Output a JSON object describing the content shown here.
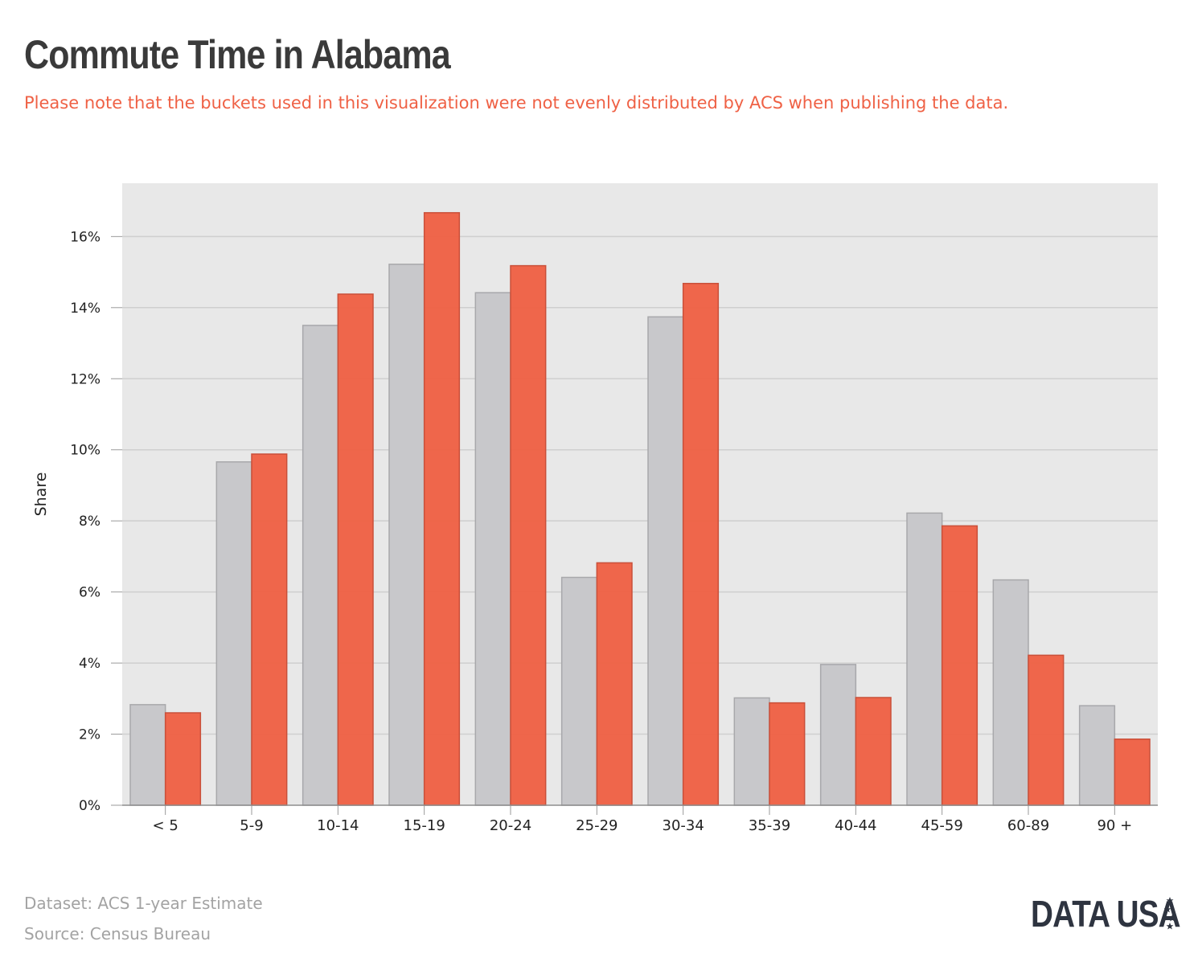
{
  "title": "Commute Time in Alabama",
  "subtitle": "Please note that the buckets used in this visualization were not evenly distributed by ACS when publishing the data.",
  "footer": {
    "dataset": "Dataset: ACS 1-year Estimate",
    "source": "Source: Census Bureau"
  },
  "logo": {
    "text": "DATA USA",
    "icon": "stars-icon"
  },
  "colors": {
    "accent": "#ef6145",
    "gray_bar": "#c8c8cb",
    "plot_background": "#e8e8e8"
  },
  "chart_data": {
    "type": "bar",
    "ylabel": "Share",
    "xlabel": "",
    "ylim": [
      0,
      17.5
    ],
    "yticks": [
      0,
      2,
      4,
      6,
      8,
      10,
      12,
      14,
      16
    ],
    "ytick_labels": [
      "0%",
      "2%",
      "4%",
      "6%",
      "8%",
      "10%",
      "12%",
      "14%",
      "16%"
    ],
    "grid": true,
    "categories": [
      "< 5",
      "5-9",
      "10-14",
      "15-19",
      "20-24",
      "25-29",
      "30-34",
      "35-39",
      "40-44",
      "45-59",
      "60-89",
      "90 +"
    ],
    "series": [
      {
        "color": "#c8c8cb",
        "values": [
          2.83,
          9.66,
          13.5,
          15.22,
          14.42,
          6.41,
          13.74,
          3.02,
          3.96,
          8.22,
          6.34,
          2.8
        ]
      },
      {
        "color": "#ef6145",
        "values": [
          2.6,
          9.88,
          14.38,
          16.67,
          15.18,
          6.82,
          14.68,
          2.88,
          3.03,
          7.86,
          4.22,
          1.86
        ]
      }
    ]
  }
}
